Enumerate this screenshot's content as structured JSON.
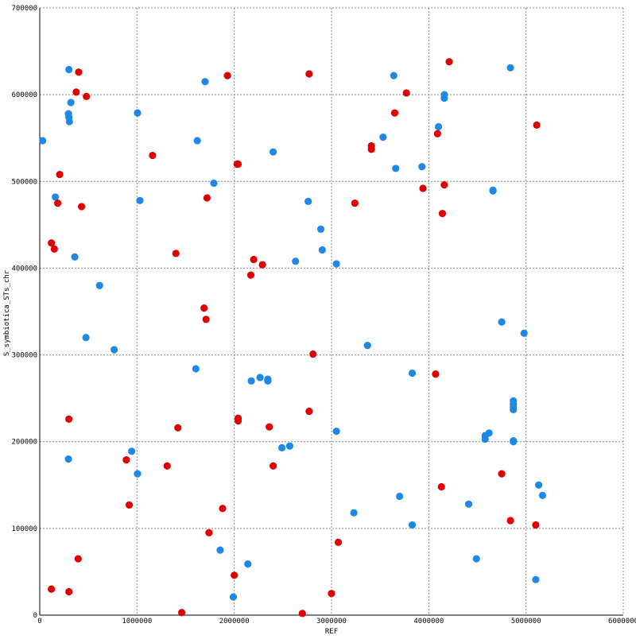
{
  "chart_data": {
    "type": "scatter",
    "title": "",
    "xlabel": "REF",
    "ylabel": "S_symbiotica_STs_chr",
    "xlim": [
      0,
      6000000
    ],
    "ylim": [
      0,
      700000
    ],
    "x_ticks": [
      0,
      1000000,
      2000000,
      3000000,
      4000000,
      5000000,
      6000000
    ],
    "y_ticks": [
      0,
      100000,
      200000,
      300000,
      400000,
      500000,
      600000,
      700000
    ],
    "x_tick_labels": [
      "0",
      "1000000",
      "2000000",
      "3000000",
      "4000000",
      "5000000",
      "6000000"
    ],
    "y_tick_labels": [
      "0",
      "100000",
      "200000",
      "300000",
      "400000",
      "500000",
      "600000",
      "700000"
    ],
    "grid": true,
    "legend": "none",
    "series": [
      {
        "color": "#1e88e5",
        "points": [
          [
            30000,
            547000
          ],
          [
            300000,
            629000
          ],
          [
            320000,
            591000
          ],
          [
            295000,
            578000
          ],
          [
            300000,
            574000
          ],
          [
            305000,
            569000
          ],
          [
            160000,
            482000
          ],
          [
            360000,
            413000
          ],
          [
            615000,
            380000
          ],
          [
            475000,
            320000
          ],
          [
            765000,
            306000
          ],
          [
            295000,
            180000
          ],
          [
            945000,
            189000
          ],
          [
            1005000,
            163000
          ],
          [
            1005000,
            579000
          ],
          [
            1030000,
            478000
          ],
          [
            1700000,
            615000
          ],
          [
            1620000,
            547000
          ],
          [
            1790000,
            498000
          ],
          [
            1605000,
            284000
          ],
          [
            1855000,
            75000
          ],
          [
            1990000,
            21000
          ],
          [
            2140000,
            59000
          ],
          [
            2175000,
            270000
          ],
          [
            2265000,
            274000
          ],
          [
            2345000,
            270000
          ],
          [
            2345000,
            272000
          ],
          [
            2490000,
            193000
          ],
          [
            2570000,
            195000
          ],
          [
            2400000,
            534000
          ],
          [
            2760000,
            477000
          ],
          [
            2890000,
            445000
          ],
          [
            2905000,
            421000
          ],
          [
            2630000,
            408000
          ],
          [
            3050000,
            405000
          ],
          [
            3050000,
            212000
          ],
          [
            3230000,
            118000
          ],
          [
            3370000,
            311000
          ],
          [
            3530000,
            551000
          ],
          [
            3640000,
            622000
          ],
          [
            3660000,
            515000
          ],
          [
            3700000,
            137000
          ],
          [
            3830000,
            279000
          ],
          [
            3830000,
            104000
          ],
          [
            3930000,
            517000
          ],
          [
            4100000,
            563000
          ],
          [
            4160000,
            600000
          ],
          [
            4160000,
            596000
          ],
          [
            4410000,
            128000
          ],
          [
            4490000,
            65000
          ],
          [
            4580000,
            207000
          ],
          [
            4580000,
            203000
          ],
          [
            4620000,
            210000
          ],
          [
            4660000,
            490000
          ],
          [
            4660000,
            489000
          ],
          [
            4750000,
            338000
          ],
          [
            4840000,
            631000
          ],
          [
            4870000,
            247000
          ],
          [
            4870000,
            243000
          ],
          [
            4870000,
            240000
          ],
          [
            4870000,
            237000
          ],
          [
            4870000,
            201000
          ],
          [
            4870000,
            200000
          ],
          [
            4980000,
            325000
          ],
          [
            5130000,
            150000
          ],
          [
            5170000,
            138000
          ],
          [
            5100000,
            41000
          ]
        ]
      },
      {
        "color": "#e00000",
        "points": [
          [
            120000,
            30000
          ],
          [
            300000,
            27000
          ],
          [
            395000,
            65000
          ],
          [
            300000,
            226000
          ],
          [
            890000,
            179000
          ],
          [
            920000,
            127000
          ],
          [
            120000,
            429000
          ],
          [
            150000,
            422000
          ],
          [
            185000,
            475000
          ],
          [
            205000,
            508000
          ],
          [
            375000,
            603000
          ],
          [
            400000,
            626000
          ],
          [
            480000,
            598000
          ],
          [
            430000,
            471000
          ],
          [
            1160000,
            530000
          ],
          [
            1420000,
            216000
          ],
          [
            1400000,
            417000
          ],
          [
            1310000,
            172000
          ],
          [
            1460000,
            3000
          ],
          [
            1740000,
            95000
          ],
          [
            1690000,
            354000
          ],
          [
            1710000,
            341000
          ],
          [
            1720000,
            481000
          ],
          [
            1930000,
            622000
          ],
          [
            2040000,
            520000
          ],
          [
            2030000,
            520000
          ],
          [
            1880000,
            123000
          ],
          [
            2000000,
            46000
          ],
          [
            2040000,
            227000
          ],
          [
            2040000,
            224000
          ],
          [
            2170000,
            392000
          ],
          [
            2200000,
            410000
          ],
          [
            2290000,
            404000
          ],
          [
            2360000,
            217000
          ],
          [
            2400000,
            172000
          ],
          [
            2700000,
            2000
          ],
          [
            2770000,
            235000
          ],
          [
            2810000,
            301000
          ],
          [
            2770000,
            624000
          ],
          [
            3000000,
            25000
          ],
          [
            3070000,
            84000
          ],
          [
            3240000,
            475000
          ],
          [
            3410000,
            537000
          ],
          [
            3410000,
            541000
          ],
          [
            3650000,
            579000
          ],
          [
            3770000,
            602000
          ],
          [
            3940000,
            492000
          ],
          [
            4070000,
            278000
          ],
          [
            4090000,
            555000
          ],
          [
            4130000,
            148000
          ],
          [
            4140000,
            463000
          ],
          [
            4160000,
            496000
          ],
          [
            4210000,
            638000
          ],
          [
            4750000,
            163000
          ],
          [
            4840000,
            109000
          ],
          [
            5100000,
            104000
          ],
          [
            5110000,
            565000
          ]
        ]
      }
    ]
  }
}
